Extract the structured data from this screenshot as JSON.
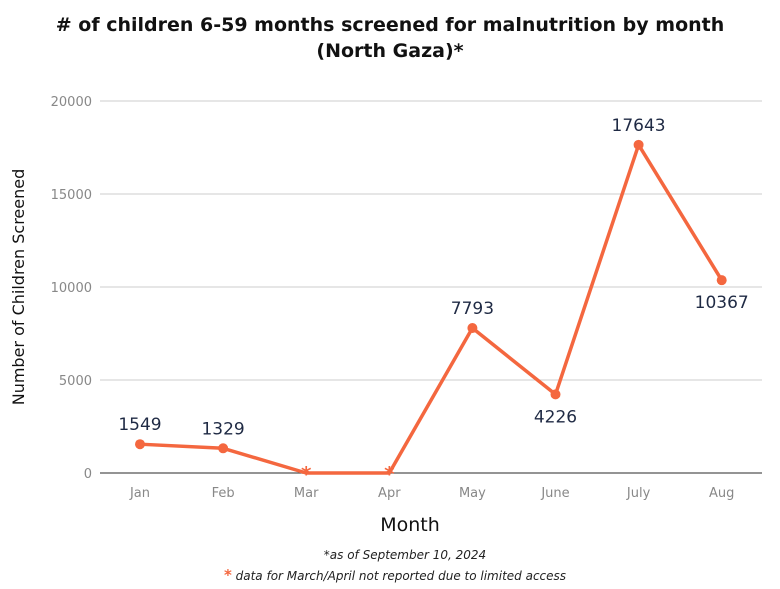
{
  "chart_data": {
    "type": "line",
    "title_line1": "# of children 6-59 months screened for malnutrition by month",
    "title_line2": "(North Gaza)*",
    "xlabel": "Month",
    "ylabel": "Number of Children Screened",
    "categories": [
      "Jan",
      "Feb",
      "Mar",
      "Apr",
      "May",
      "June",
      "July",
      "Aug"
    ],
    "values": [
      1549,
      1329,
      0,
      0,
      7793,
      4226,
      17643,
      10367
    ],
    "data_labels": [
      "1549",
      "1329",
      "",
      "",
      "7793",
      "4226",
      "17643",
      "10367"
    ],
    "not_reported": [
      "Mar",
      "Apr"
    ],
    "ylim": [
      0,
      20000
    ],
    "yticks": [
      0,
      5000,
      10000,
      15000,
      20000
    ],
    "grid": true,
    "line_color": "#f4673f"
  },
  "footnotes": {
    "date_note": "*as of September 10, 2024",
    "asterisk": "*",
    "access_note": "data for March/April not reported due to limited access"
  }
}
